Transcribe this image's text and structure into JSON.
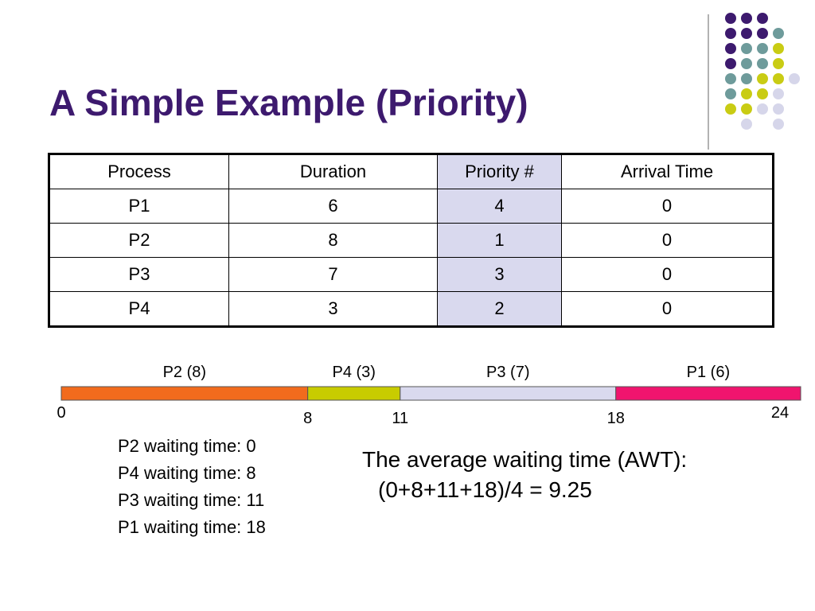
{
  "title": "A Simple Example (Priority)",
  "table": {
    "header": [
      "Process",
      "Duration",
      "Priority #",
      "Arrival Time"
    ],
    "rows": [
      [
        "P1",
        6,
        4,
        0
      ],
      [
        "P2",
        8,
        1,
        0
      ],
      [
        "P3",
        7,
        3,
        0
      ],
      [
        "P4",
        3,
        2,
        0
      ]
    ]
  },
  "gantt": {
    "segments": [
      {
        "label": "P2 (8)",
        "color": "#f26b1d"
      },
      {
        "label": "P4 (3)",
        "color": "#c8cc00"
      },
      {
        "label": "P3 (7)",
        "color": "#d9d9ee"
      },
      {
        "label": "P1 (6)",
        "color": "#f0146e"
      }
    ],
    "ticks": [
      0,
      8,
      11,
      18,
      24
    ]
  },
  "waiting_times": [
    "P2 waiting time: 0",
    "P4 waiting time: 8",
    "P3 waiting time: 11",
    "P1 waiting time: 18"
  ],
  "average": [
    "The average waiting time (AWT):",
    "(0+8+11+18)/4 = 9.25"
  ]
}
